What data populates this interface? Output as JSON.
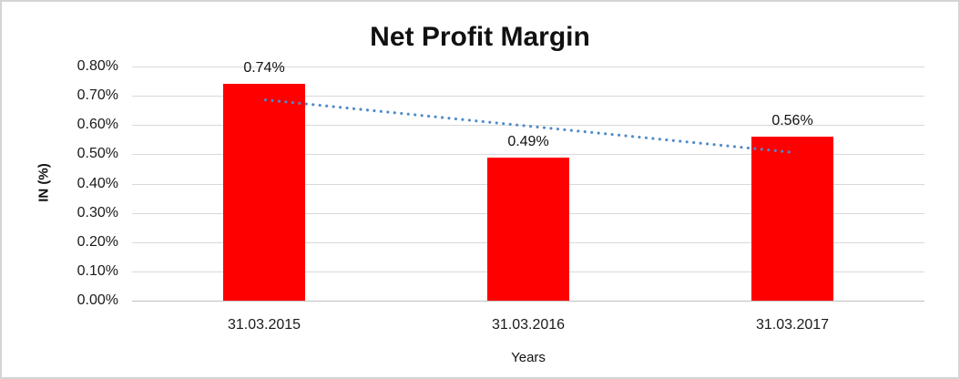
{
  "chart_data": {
    "type": "bar",
    "title": "Net Profit Margin",
    "xlabel": "Years",
    "ylabel": "IN (%)",
    "categories": [
      "31.03.2015",
      "31.03.2016",
      "31.03.2017"
    ],
    "values": [
      0.74,
      0.49,
      0.56
    ],
    "value_labels": [
      "0.74%",
      "0.49%",
      "0.56%"
    ],
    "ylim": [
      0,
      0.8
    ],
    "ytick_labels": [
      "0.00%",
      "0.10%",
      "0.20%",
      "0.30%",
      "0.40%",
      "0.50%",
      "0.60%",
      "0.70%",
      "0.80%"
    ],
    "grid": true,
    "legend": false,
    "bar_color": "#ff0000",
    "gridline_color": "#d9d9d9",
    "background": "#ffffff",
    "trendline": {
      "type": "linear",
      "style": "dotted",
      "color": "#4e8ac8",
      "start_value": 0.687,
      "end_value": 0.507
    }
  }
}
